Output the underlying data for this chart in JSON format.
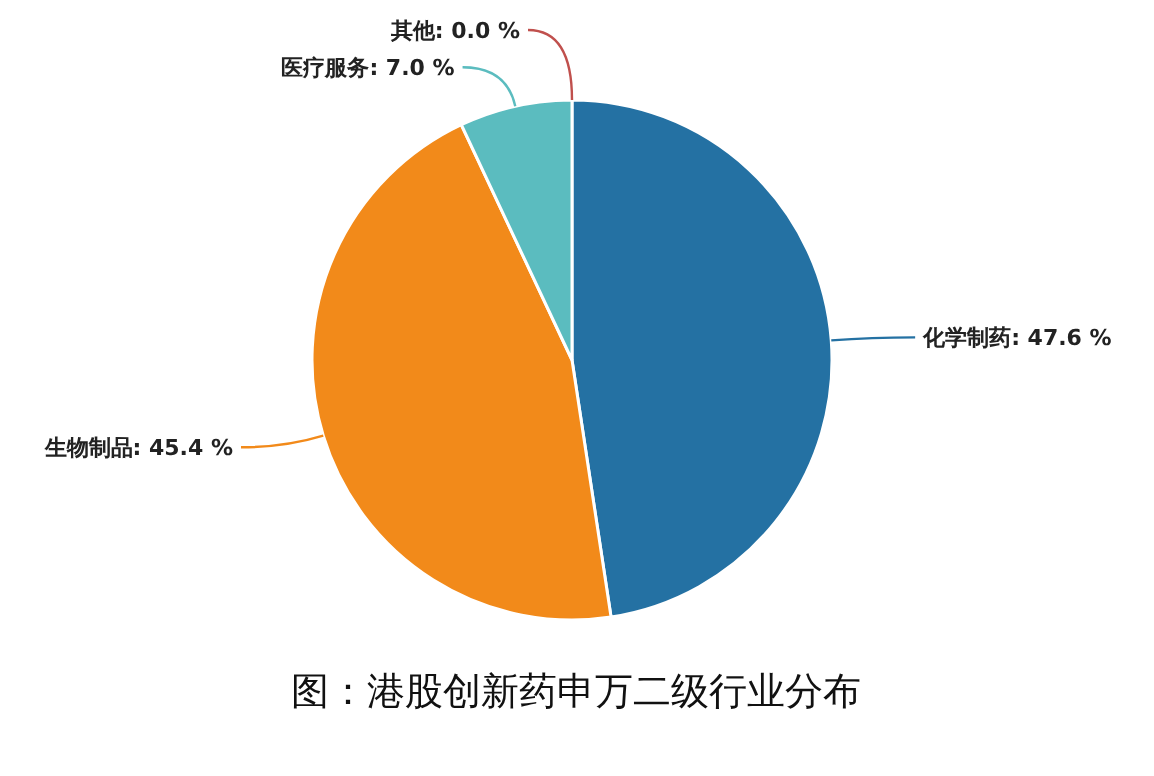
{
  "chart_data": {
    "type": "pie",
    "title": "图：港股创新药申万二级行业分布",
    "categories": [
      "化学制药",
      "生物制品",
      "医疗服务",
      "其他"
    ],
    "values": [
      47.6,
      45.4,
      7.0,
      0.0
    ],
    "value_labels": [
      ": 47.6 %",
      ": 45.4 %",
      ": 7.0 %",
      ": 0.0 %"
    ],
    "colors": [
      "#2471a3",
      "#f28a1a",
      "#5bbcbf",
      "#c0504d"
    ]
  }
}
